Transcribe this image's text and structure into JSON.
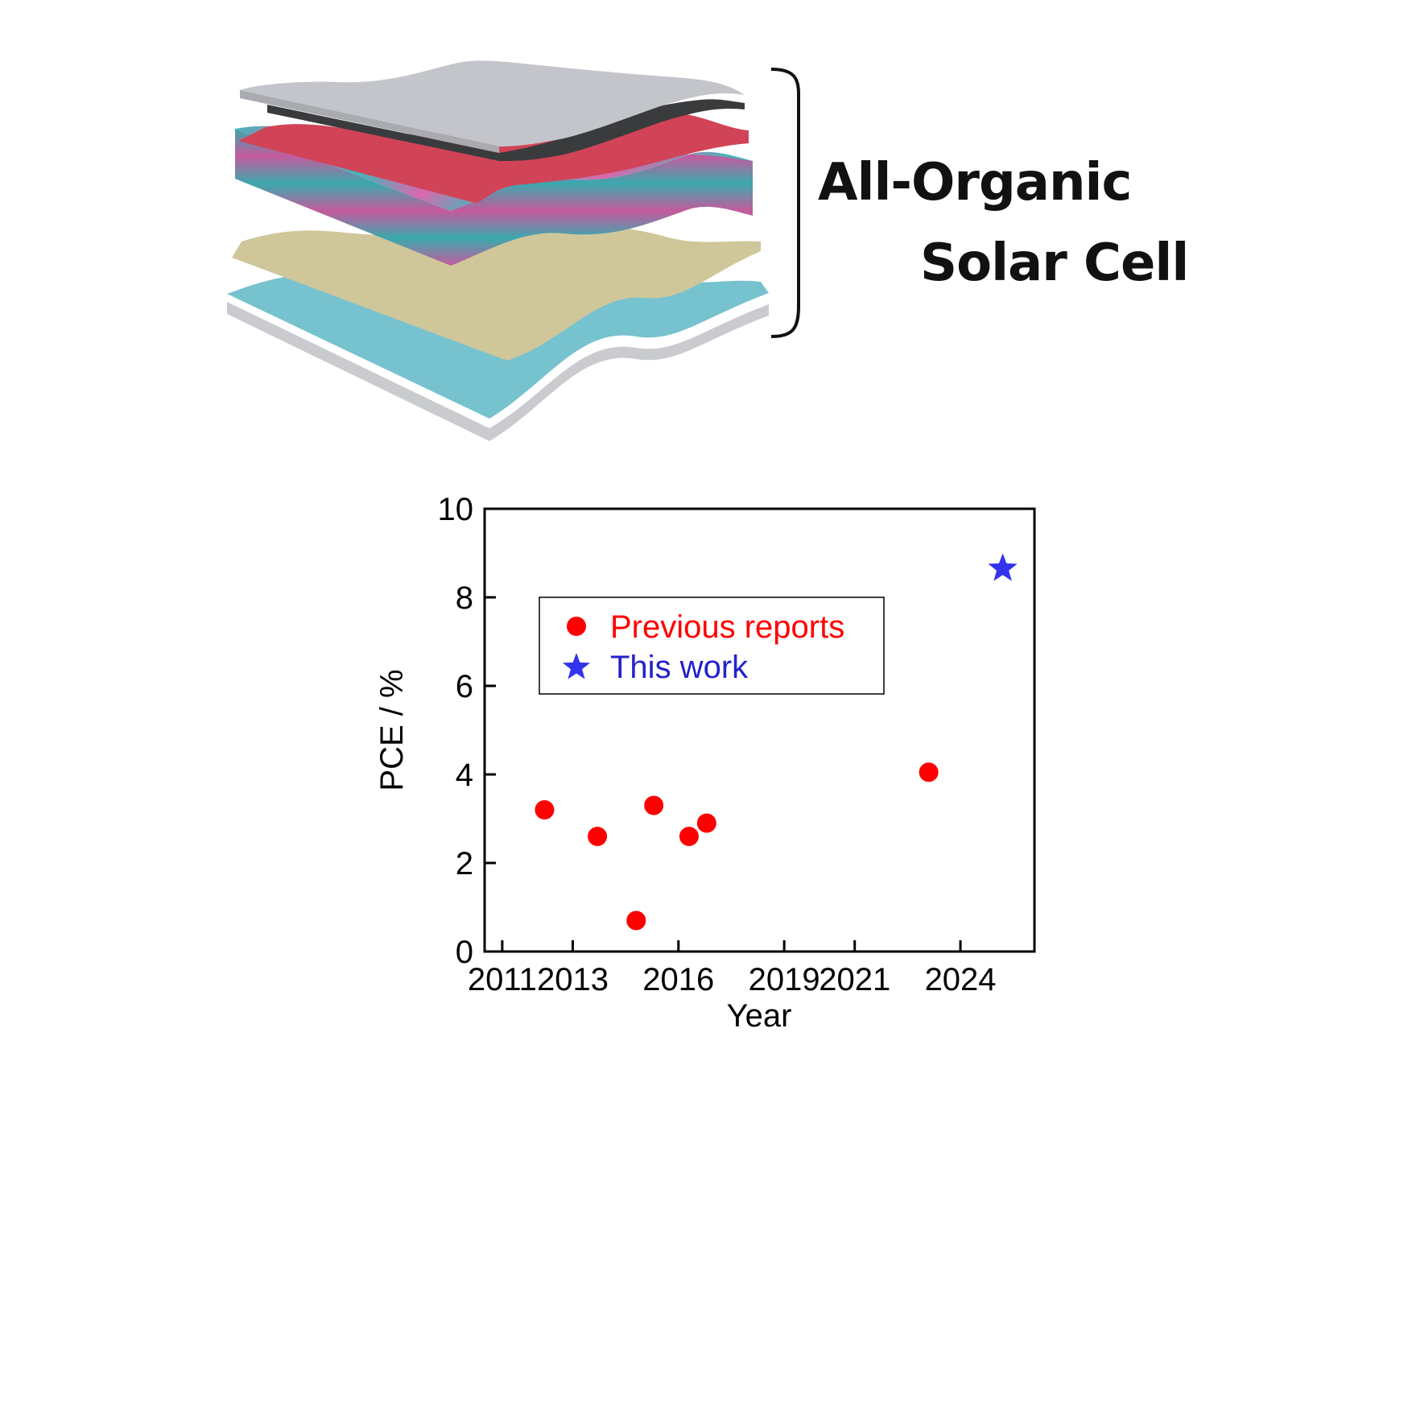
{
  "headline": {
    "line1": "All-Organic",
    "line2": "Solar Cell"
  },
  "illustration": {
    "layer_colors": [
      "#c3c5cb",
      "#3a3b3d",
      "#d14357",
      "#3fb7bd",
      "#d968ac",
      "#cfc79a",
      "#77c2cf",
      "#c9cbcf"
    ],
    "bracket_color": "#111111"
  },
  "chart_data": {
    "type": "scatter",
    "title": "",
    "xlabel": "Year",
    "ylabel": "PCE / %",
    "xlim": [
      2010.5,
      2026.1
    ],
    "ylim": [
      0,
      10
    ],
    "xticks": [
      2011,
      2013,
      2016,
      2019,
      2021,
      2024
    ],
    "yticks": [
      0,
      2,
      4,
      6,
      8,
      10
    ],
    "grid": false,
    "legend_position": "upper-left",
    "series": [
      {
        "name": "Previous reports",
        "marker": "circle",
        "color": "#ff0000",
        "points": [
          {
            "x": 2012.2,
            "y": 3.2
          },
          {
            "x": 2013.7,
            "y": 2.6
          },
          {
            "x": 2014.8,
            "y": 0.7
          },
          {
            "x": 2015.3,
            "y": 3.3
          },
          {
            "x": 2016.3,
            "y": 2.6
          },
          {
            "x": 2016.8,
            "y": 2.9
          },
          {
            "x": 2023.1,
            "y": 4.05
          }
        ]
      },
      {
        "name": "This work",
        "marker": "star",
        "color": "#3333ee",
        "points": [
          {
            "x": 2025.2,
            "y": 8.65
          }
        ]
      }
    ]
  }
}
